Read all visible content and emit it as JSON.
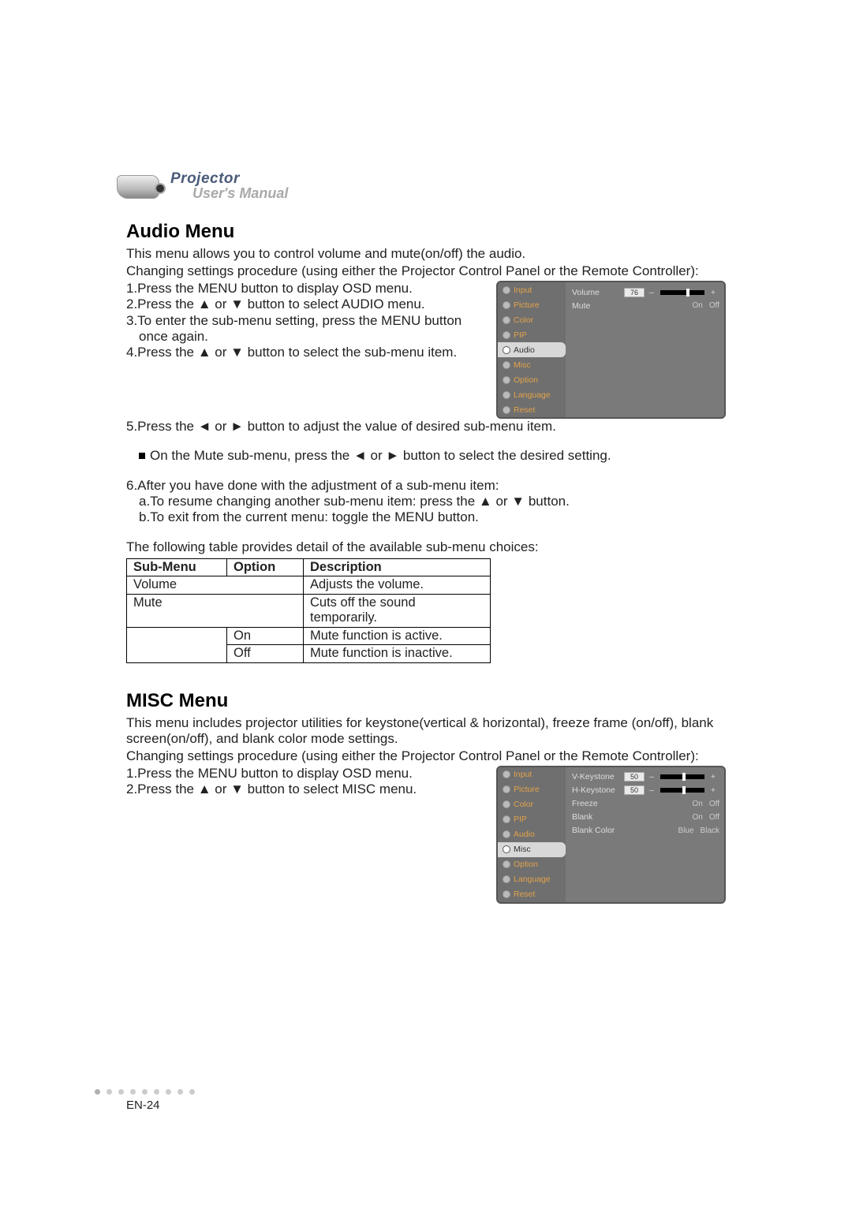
{
  "header": {
    "brand_line1": "Projector",
    "brand_line2": "User's Manual"
  },
  "audio": {
    "heading": "Audio  Menu",
    "intro1": "This menu allows you to control volume and mute(on/off) the audio.",
    "intro2": "Changing settings procedure (using either the Projector Control Panel or the Remote Controller):",
    "steps": {
      "s1": "1.Press the MENU button to display OSD menu.",
      "s2a": "2.Press the ",
      "s2b": " or ",
      "s2c": " button to select AUDIO menu.",
      "s3": "3.To enter the sub-menu setting, press the MENU button once again.",
      "s4a": "4.Press the ",
      "s4b": " or ",
      "s4c": " button to select the sub-menu item.",
      "s5a": "5.Press the ",
      "s5b": " or ",
      "s5c": " button to adjust the value of desired sub-menu item.",
      "s5_bullet_a": "On the Mute sub-menu, press the ",
      "s5_bullet_b": " or ",
      "s5_bullet_c": " button to select the desired setting.",
      "s6": "6.After you have done with the adjustment of a sub-menu item:",
      "s6a_a": "a.To resume changing another sub-menu item: press the ",
      "s6a_b": " or ",
      "s6a_c": " button.",
      "s6b": "b.To exit from the current menu: toggle the MENU button."
    },
    "table_intro": "The following table provides detail of the available sub-menu choices:",
    "table": {
      "h1": "Sub-Menu",
      "h2": "Option",
      "h3": "Description",
      "r1c1": "Volume",
      "r1c3": "Adjusts the volume.",
      "r2c1": "Mute",
      "r2c3": "Cuts off the sound temporarily.",
      "r3c2": "On",
      "r3c3": "Mute function is active.",
      "r4c2": "Off",
      "r4c3": "Mute function is inactive."
    },
    "osd": {
      "menu_items": [
        "Input",
        "Picture",
        "Color",
        "PIP",
        "Audio",
        "Misc",
        "Option",
        "Language",
        "Reset"
      ],
      "selected": "Audio",
      "volume_label": "Volume",
      "volume_value": "76",
      "mute_label": "Mute",
      "on": "On",
      "off": "Off"
    }
  },
  "misc": {
    "heading": "MISC Menu",
    "intro1": "This menu includes projector utilities for keystone(vertical & horizontal), freeze frame (on/off), blank screen(on/off), and blank color mode settings.",
    "intro2": "Changing settings procedure (using either the Projector Control Panel or the Remote Controller):",
    "steps": {
      "s1": "1.Press the MENU button to display OSD menu.",
      "s2a": "2.Press the ",
      "s2b": " or ",
      "s2c": " button to select MISC menu."
    },
    "osd": {
      "menu_items": [
        "Input",
        "Picture",
        "Color",
        "PIP",
        "Audio",
        "Misc",
        "Option",
        "Language",
        "Reset"
      ],
      "selected": "Misc",
      "rows": {
        "vk_label": "V-Keystone",
        "vk_value": "50",
        "hk_label": "H-Keystone",
        "hk_value": "50",
        "freeze_label": "Freeze",
        "on": "On",
        "off": "Off",
        "blank_label": "Blank",
        "bc_label": "Blank Color",
        "bc_v1": "Blue",
        "bc_v2": "Black"
      }
    }
  },
  "glyphs": {
    "up": "▲",
    "down": "▼",
    "left": "◄",
    "right": "►",
    "minus": "–",
    "plus": "+"
  },
  "page_num": "EN-24"
}
